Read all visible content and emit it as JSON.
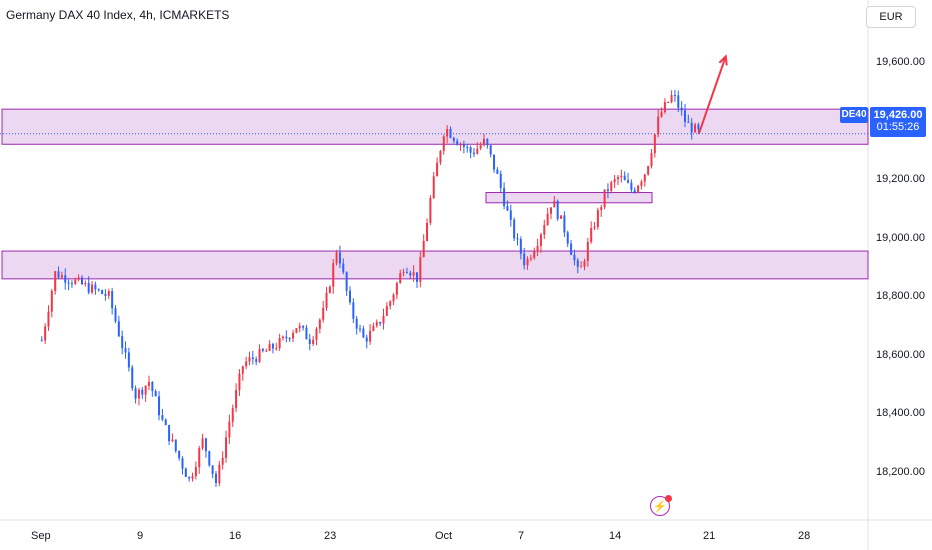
{
  "header": {
    "title": "Germany DAX 40 Index, 4h, ICMARKETS"
  },
  "toolbar": {
    "currency_label": "EUR",
    "alert_icon": "lightning-icon"
  },
  "price_tag": {
    "symbol": "DE40",
    "price": "19,426.00",
    "countdown": "01:55:26"
  },
  "colors": {
    "up": "#f23645",
    "down": "#2962ff",
    "zone": "#9c27b0",
    "arrow": "#f23645",
    "tag": "#2962ff"
  },
  "chart_data": {
    "type": "candlestick",
    "title": "Germany DAX 40 Index, 4h, ICMARKETS",
    "ylim": [
      18140,
      19760
    ],
    "y_ticks": [
      18200,
      18400,
      18600,
      18800,
      19000,
      19200,
      19600
    ],
    "y_tick_labels": [
      "18,200.00",
      "18,400.00",
      "18,600.00",
      "18,800.00",
      "19,000.00",
      "19,200.00",
      "19,600.00"
    ],
    "x_tick_labels": [
      "Sep",
      "9",
      "16",
      "23",
      "Oct",
      "7",
      "14",
      "21",
      "28"
    ],
    "current_price": 19426,
    "price_path": [
      {
        "date": "Aug 29",
        "price": 18720
      },
      {
        "date": "Aug 30",
        "price": 18950
      },
      {
        "date": "Sep 3",
        "price": 18870
      },
      {
        "date": "Sep 5",
        "price": 18530
      },
      {
        "date": "Sep 6",
        "price": 18580
      },
      {
        "date": "Sep 7",
        "price": 18440
      },
      {
        "date": "Sep 9",
        "price": 18240
      },
      {
        "date": "Sep 10",
        "price": 18380
      },
      {
        "date": "Sep 11",
        "price": 18230
      },
      {
        "date": "Sep 12",
        "price": 18450
      },
      {
        "date": "Sep 13",
        "price": 18640
      },
      {
        "date": "Sep 15",
        "price": 18690
      },
      {
        "date": "Sep 16",
        "price": 18720
      },
      {
        "date": "Sep 17",
        "price": 18770
      },
      {
        "date": "Sep 18",
        "price": 18720
      },
      {
        "date": "Sep 19",
        "price": 18820
      },
      {
        "date": "Sep 20",
        "price": 19040
      },
      {
        "date": "Sep 21",
        "price": 18820
      },
      {
        "date": "Sep 22",
        "price": 18720
      },
      {
        "date": "Sep 23",
        "price": 18770
      },
      {
        "date": "Sep 24",
        "price": 18860
      },
      {
        "date": "Sep 25",
        "price": 18980
      },
      {
        "date": "Sep 26",
        "price": 18930
      },
      {
        "date": "Sep 27",
        "price": 19220
      },
      {
        "date": "Sep 28",
        "price": 19450
      },
      {
        "date": "Sep 29",
        "price": 19400
      },
      {
        "date": "Sep 30",
        "price": 19360
      },
      {
        "date": "Oct 1",
        "price": 19400
      },
      {
        "date": "Oct 2",
        "price": 19270
      },
      {
        "date": "Oct 3",
        "price": 19100
      },
      {
        "date": "Oct 4",
        "price": 18980
      },
      {
        "date": "Oct 5",
        "price": 19070
      },
      {
        "date": "Oct 6",
        "price": 19200
      },
      {
        "date": "Oct 7",
        "price": 19090
      },
      {
        "date": "Oct 8",
        "price": 18940
      },
      {
        "date": "Oct 9",
        "price": 19100
      },
      {
        "date": "Oct 10",
        "price": 19230
      },
      {
        "date": "Oct 11",
        "price": 19280
      },
      {
        "date": "Oct 12",
        "price": 19230
      },
      {
        "date": "Oct 13",
        "price": 19300
      },
      {
        "date": "Oct 14",
        "price": 19490
      },
      {
        "date": "Oct 15",
        "price": 19560
      },
      {
        "date": "Oct 16",
        "price": 19460
      },
      {
        "date": "Oct 17",
        "price": 19426
      }
    ],
    "zones": [
      {
        "y_low": 19390,
        "y_high": 19510
      },
      {
        "y_low": 19190,
        "y_high": 19225
      },
      {
        "y_low": 18930,
        "y_high": 19025
      }
    ],
    "arrow": {
      "from": {
        "date": "Oct 17",
        "price": 19426
      },
      "to": {
        "date": "Oct 19",
        "price": 19690
      }
    },
    "grid": false,
    "legend": "none"
  }
}
